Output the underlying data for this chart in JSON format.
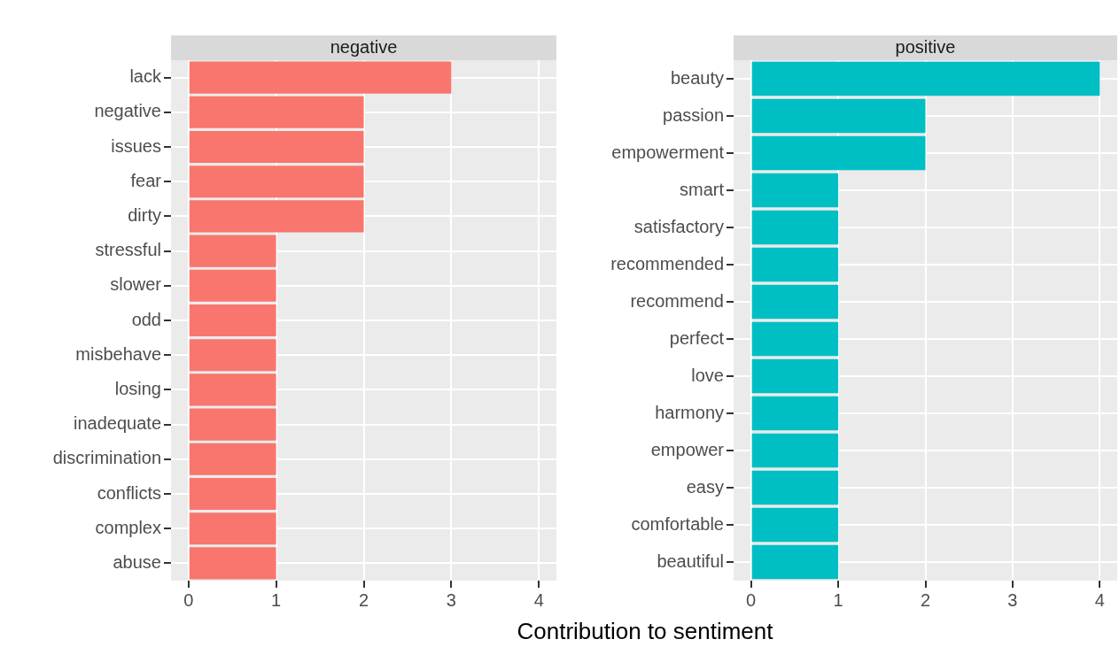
{
  "chart_data": [
    {
      "type": "bar",
      "orientation": "horizontal",
      "title": "negative",
      "xlabel": "Contribution to sentiment",
      "categories": [
        "lack",
        "negative",
        "issues",
        "fear",
        "dirty",
        "stressful",
        "slower",
        "odd",
        "misbehave",
        "losing",
        "inadequate",
        "discrimination",
        "conflicts",
        "complex",
        "abuse"
      ],
      "values": [
        3,
        2,
        2,
        2,
        2,
        1,
        1,
        1,
        1,
        1,
        1,
        1,
        1,
        1,
        1
      ],
      "color": "#f8766d",
      "xlim": [
        -0.2,
        4.2
      ],
      "xticks": [
        0,
        1,
        2,
        3,
        4
      ],
      "grid": true
    },
    {
      "type": "bar",
      "orientation": "horizontal",
      "title": "positive",
      "categories": [
        "beauty",
        "passion",
        "empowerment",
        "smart",
        "satisfactory",
        "recommended",
        "recommend",
        "perfect",
        "love",
        "harmony",
        "empower",
        "easy",
        "comfortable",
        "beautiful"
      ],
      "values": [
        4,
        2,
        2,
        1,
        1,
        1,
        1,
        1,
        1,
        1,
        1,
        1,
        1,
        1
      ],
      "color": "#00bfc4",
      "xlim": [
        -0.2,
        4.2
      ],
      "xticks": [
        0,
        1,
        2,
        3,
        4
      ],
      "grid": true
    }
  ]
}
